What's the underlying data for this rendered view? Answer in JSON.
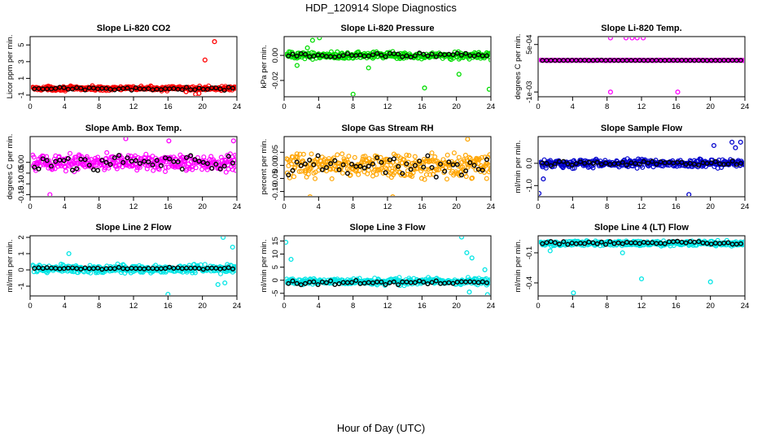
{
  "figure": {
    "title": "HDP_120914  Slope Diagnostics",
    "xlabel": "Hour of Day (UTC)"
  },
  "chart_data": [
    {
      "type": "scatter",
      "title": "Slope Li-820 CO2",
      "ylabel": "Licor ppm per min.",
      "color": "#ff0000",
      "xlim": [
        0,
        24
      ],
      "ylim": [
        -1.2,
        6
      ],
      "xticks": [
        0,
        4,
        8,
        12,
        16,
        20,
        24
      ],
      "yticks": [
        -1,
        1,
        3,
        5
      ],
      "ytick_labels": [
        "-1",
        "1",
        "3",
        "5"
      ],
      "series_band": {
        "center": -0.2,
        "spread": 0.35
      },
      "outliers": [
        [
          19.2,
          -0.9
        ],
        [
          19.6,
          -0.8
        ],
        [
          20.3,
          3.2
        ],
        [
          21.4,
          5.4
        ],
        [
          18.1,
          -0.6
        ]
      ],
      "hourly_mean_band": {
        "center": -0.25,
        "spread": 0.2
      }
    },
    {
      "type": "scatter",
      "title": "Slope Li-820 Pressure",
      "ylabel": "kPa per min.",
      "color": "#00dd00",
      "xlim": [
        0,
        24
      ],
      "ylim": [
        -0.033,
        0.015
      ],
      "xticks": [
        0,
        4,
        8,
        12,
        16,
        20,
        24
      ],
      "yticks": [
        -0.02,
        0.0
      ],
      "ytick_labels": [
        "-0.02",
        "0.00"
      ],
      "series_band": {
        "center": 0.0,
        "spread": 0.004
      },
      "outliers": [
        [
          3.3,
          0.012
        ],
        [
          4.1,
          0.014
        ],
        [
          1.5,
          -0.008
        ],
        [
          9.8,
          -0.01
        ],
        [
          16.3,
          -0.026
        ],
        [
          23.8,
          -0.027
        ],
        [
          8.0,
          -0.031
        ],
        [
          2.7,
          0.006
        ],
        [
          20.3,
          -0.015
        ]
      ],
      "hourly_mean_band": {
        "center": 0.0,
        "spread": 0.002
      }
    },
    {
      "type": "scatter",
      "title": "Slope Li-820 Temp.",
      "ylabel": "degrees C per min.",
      "color": "#ff00ff",
      "xlim": [
        0,
        24
      ],
      "ylim": [
        -0.00115,
        0.00075
      ],
      "xticks": [
        0,
        4,
        8,
        12,
        16,
        20,
        24
      ],
      "yticks": [
        -0.001,
        0.0005
      ],
      "ytick_labels": [
        "-1e-03",
        "5e-04"
      ],
      "series_band": {
        "center": 0.0,
        "spread": 1e-05
      },
      "outliers": [
        [
          8.4,
          0.00071
        ],
        [
          10.2,
          0.00071
        ],
        [
          10.9,
          0.00071
        ],
        [
          11.5,
          0.00071
        ],
        [
          12.2,
          0.00071
        ],
        [
          8.4,
          -0.001
        ],
        [
          16.2,
          -0.001
        ]
      ],
      "hourly_mean_band": {
        "center": 0.0,
        "spread": 5e-06
      }
    },
    {
      "type": "scatter",
      "title": "Slope Amb. Box Temp.",
      "ylabel": "degrees C per min.",
      "color": "#ff00ff",
      "xlim": [
        0,
        24
      ],
      "ylim": [
        -0.16,
        0.12
      ],
      "xticks": [
        0,
        4,
        8,
        12,
        16,
        20,
        24
      ],
      "yticks": [
        -0.15,
        -0.1,
        -0.05,
        0.0
      ],
      "ytick_labels": [
        "-0.15",
        "-0.10",
        "-0.05",
        "0.00"
      ],
      "series_band": {
        "center": 0.0,
        "spread": 0.06
      },
      "outliers": [
        [
          2.3,
          -0.15
        ],
        [
          11.1,
          0.11
        ],
        [
          16.1,
          0.1
        ],
        [
          23.6,
          0.1
        ]
      ],
      "hourly_mean_band": {
        "center": 0.0,
        "spread": 0.04
      }
    },
    {
      "type": "scatter",
      "title": "Slope Gas Stream RH",
      "ylabel": "percent per min.",
      "color": "#ffa500",
      "xlim": [
        0,
        24
      ],
      "ylim": [
        -0.12,
        0.11
      ],
      "xticks": [
        0,
        4,
        8,
        12,
        16,
        20,
        24
      ],
      "yticks": [
        -0.1,
        -0.05,
        0.0,
        0.05
      ],
      "ytick_labels": [
        "-0.10",
        "-0.05",
        "0.00",
        "0.05"
      ],
      "series_band": {
        "center": 0.0,
        "spread": 0.065
      },
      "outliers": [
        [
          3.0,
          -0.12
        ],
        [
          12.6,
          -0.12
        ],
        [
          21.3,
          0.1
        ]
      ],
      "hourly_mean_band": {
        "center": 0.0,
        "spread": 0.05
      }
    },
    {
      "type": "scatter",
      "title": "Slope Sample Flow",
      "ylabel": "ml/min per min.",
      "color": "#0000cc",
      "xlim": [
        0,
        24
      ],
      "ylim": [
        -1.5,
        1.2
      ],
      "xticks": [
        0,
        4,
        8,
        12,
        16,
        20,
        24
      ],
      "yticks": [
        -1.0,
        0.0
      ],
      "ytick_labels": [
        "-1.0",
        "0.0"
      ],
      "series_band": {
        "center": 0.0,
        "spread": 0.25
      },
      "outliers": [
        [
          0.1,
          -1.35
        ],
        [
          17.5,
          -1.4
        ],
        [
          22.5,
          0.95
        ],
        [
          23.5,
          0.95
        ],
        [
          20.4,
          0.8
        ],
        [
          22.9,
          0.7
        ],
        [
          0.6,
          -0.7
        ]
      ],
      "hourly_mean_band": {
        "center": 0.0,
        "spread": 0.12
      }
    },
    {
      "type": "scatter",
      "title": "Slope Line 2 Flow",
      "ylabel": "ml/min per min.",
      "color": "#00e5e5",
      "xlim": [
        0,
        24
      ],
      "ylim": [
        -1.6,
        2.1
      ],
      "xticks": [
        0,
        4,
        8,
        12,
        16,
        20,
        24
      ],
      "yticks": [
        -1,
        0,
        1,
        2
      ],
      "ytick_labels": [
        "-1",
        "0",
        "1",
        "2"
      ],
      "series_band": {
        "center": 0.05,
        "spread": 0.35
      },
      "outliers": [
        [
          16.0,
          -1.5
        ],
        [
          22.4,
          2.0
        ],
        [
          4.5,
          1.0
        ],
        [
          23.5,
          1.4
        ],
        [
          21.8,
          -0.9
        ],
        [
          22.6,
          -0.8
        ]
      ],
      "hourly_mean_band": {
        "center": 0.1,
        "spread": 0.08
      }
    },
    {
      "type": "scatter",
      "title": "Slope Line 3 Flow",
      "ylabel": "ml/min per min.",
      "color": "#00e5e5",
      "xlim": [
        0,
        24
      ],
      "ylim": [
        -6,
        17
      ],
      "xticks": [
        0,
        4,
        8,
        12,
        16,
        20,
        24
      ],
      "yticks": [
        -5,
        0,
        5,
        10,
        15
      ],
      "ytick_labels": [
        "-5",
        "0",
        "5",
        "10",
        "15"
      ],
      "series_band": {
        "center": -0.5,
        "spread": 1.8
      },
      "outliers": [
        [
          0.2,
          14.5
        ],
        [
          20.6,
          16.5
        ],
        [
          0.8,
          8.0
        ],
        [
          21.2,
          10.5
        ],
        [
          21.8,
          8.5
        ],
        [
          23.3,
          4.0
        ],
        [
          21.5,
          -4.5
        ],
        [
          23.6,
          -5.5
        ]
      ],
      "hourly_mean_band": {
        "center": -1.0,
        "spread": 1.0
      }
    },
    {
      "type": "scatter",
      "title": "Slope Line 4 (LT) Flow",
      "ylabel": "ml/min per min.",
      "color": "#00e5e5",
      "xlim": [
        0,
        24
      ],
      "ylim": [
        -0.53,
        0.07
      ],
      "xticks": [
        0,
        4,
        8,
        12,
        16,
        20,
        24
      ],
      "yticks": [
        -0.4,
        -0.1
      ],
      "ytick_labels": [
        "-0.4",
        "-0.1"
      ],
      "series_band": {
        "center": -0.005,
        "spread": 0.035
      },
      "outliers": [
        [
          4.1,
          -0.5
        ],
        [
          12.0,
          -0.36
        ],
        [
          20.0,
          -0.39
        ],
        [
          9.8,
          -0.1
        ],
        [
          1.4,
          -0.08
        ]
      ],
      "hourly_mean_band": {
        "center": 0.0,
        "spread": 0.02
      }
    }
  ]
}
